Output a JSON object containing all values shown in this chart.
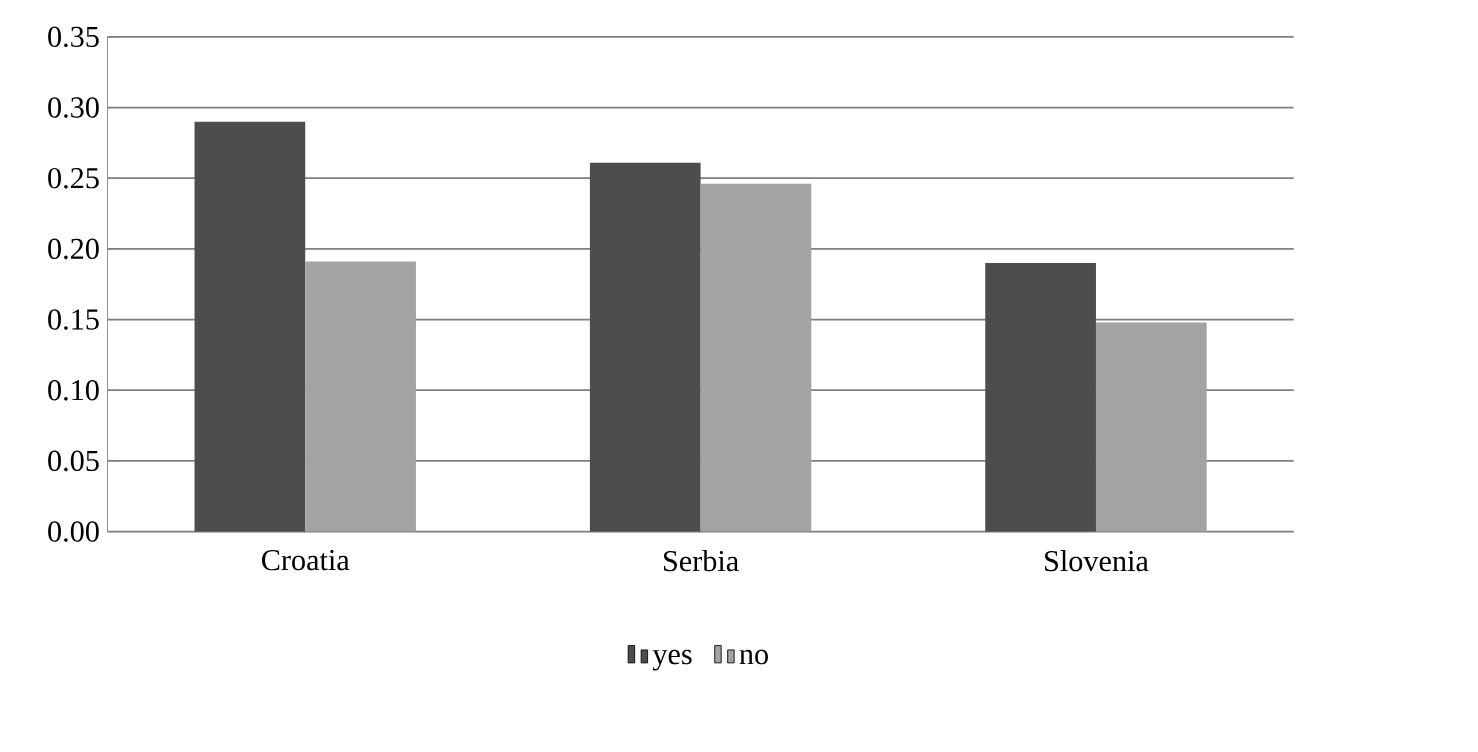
{
  "chart_data": {
    "type": "bar",
    "categories": [
      "Croatia",
      "Serbia",
      "Slovenia"
    ],
    "series": [
      {
        "name": "yes",
        "color": "#4d4d4d",
        "values": [
          0.29,
          0.261,
          0.19
        ]
      },
      {
        "name": "no",
        "color": "#a3a3a3",
        "values": [
          0.191,
          0.246,
          0.148
        ]
      }
    ],
    "ylim": [
      0,
      0.35
    ],
    "yticks": [
      {
        "value": 0,
        "label": "0.00"
      },
      {
        "value": 0.05,
        "label": "0.05"
      },
      {
        "value": 0.1,
        "label": "0.10"
      },
      {
        "value": 0.15,
        "label": "0.15"
      },
      {
        "value": 0.2,
        "label": "0.20"
      },
      {
        "value": 0.25,
        "label": "0.25"
      },
      {
        "value": 0.3,
        "label": "0.30"
      },
      {
        "value": 0.35,
        "label": "0.35"
      }
    ],
    "grid": "y",
    "legend": "bottom"
  }
}
